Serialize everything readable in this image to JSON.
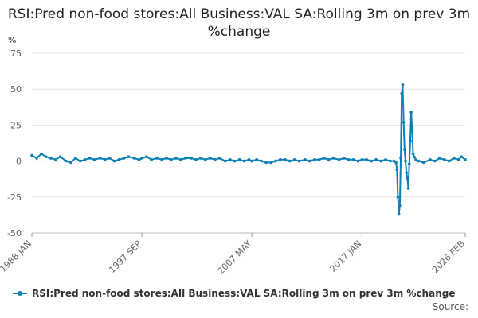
{
  "chart_data": {
    "type": "line",
    "title": "RSI:Pred non-food stores:All Business:VAL SA:Rolling 3m on prev 3m %change",
    "ylabel": "%",
    "xlabel": "",
    "ylim": [
      -50,
      75
    ],
    "yticks": [
      75,
      50,
      25,
      0,
      -25,
      -50
    ],
    "xlim": [
      "1988-01",
      "2026-02"
    ],
    "xticks": [
      "1988 JAN",
      "1997 SEP",
      "2007 MAY",
      "2017 JAN",
      "2026 FEB"
    ],
    "grid": true,
    "legend_position": "bottom",
    "series": [
      {
        "name": "RSI:Pred non-food stores:All Business:VAL SA:Rolling 3m on prev 3m %change",
        "color": "#0a7fb5",
        "points": [
          [
            "1988-01",
            4
          ],
          [
            "1988-06",
            2
          ],
          [
            "1988-11",
            5
          ],
          [
            "1989-04",
            3
          ],
          [
            "1989-09",
            2
          ],
          [
            "1990-02",
            1
          ],
          [
            "1990-07",
            3
          ],
          [
            "1991-01",
            0
          ],
          [
            "1991-06",
            -1
          ],
          [
            "1991-11",
            2
          ],
          [
            "1992-04",
            0
          ],
          [
            "1992-09",
            1
          ],
          [
            "1993-02",
            2
          ],
          [
            "1993-07",
            1
          ],
          [
            "1994-01",
            2
          ],
          [
            "1994-06",
            1
          ],
          [
            "1994-11",
            2
          ],
          [
            "1995-04",
            0
          ],
          [
            "1995-09",
            1
          ],
          [
            "1996-02",
            2
          ],
          [
            "1996-07",
            3
          ],
          [
            "1997-01",
            2
          ],
          [
            "1997-06",
            1
          ],
          [
            "1997-09",
            2
          ],
          [
            "1998-02",
            3
          ],
          [
            "1998-07",
            1
          ],
          [
            "1999-01",
            2
          ],
          [
            "1999-06",
            1
          ],
          [
            "1999-11",
            2
          ],
          [
            "2000-04",
            1
          ],
          [
            "2000-09",
            2
          ],
          [
            "2001-02",
            1
          ],
          [
            "2001-07",
            2
          ],
          [
            "2002-01",
            2
          ],
          [
            "2002-06",
            1
          ],
          [
            "2002-11",
            2
          ],
          [
            "2003-04",
            1
          ],
          [
            "2003-09",
            2
          ],
          [
            "2004-02",
            1
          ],
          [
            "2004-07",
            2
          ],
          [
            "2005-01",
            0
          ],
          [
            "2005-06",
            1
          ],
          [
            "2005-11",
            0
          ],
          [
            "2006-04",
            1
          ],
          [
            "2006-09",
            0
          ],
          [
            "2007-02",
            1
          ],
          [
            "2007-05",
            0
          ],
          [
            "2007-10",
            1
          ],
          [
            "2008-03",
            0
          ],
          [
            "2008-08",
            -1
          ],
          [
            "2009-01",
            -1
          ],
          [
            "2009-06",
            0
          ],
          [
            "2009-11",
            1
          ],
          [
            "2010-04",
            1
          ],
          [
            "2010-09",
            0
          ],
          [
            "2011-02",
            1
          ],
          [
            "2011-07",
            0
          ],
          [
            "2012-01",
            1
          ],
          [
            "2012-06",
            0
          ],
          [
            "2012-11",
            1
          ],
          [
            "2013-04",
            1
          ],
          [
            "2013-09",
            2
          ],
          [
            "2014-02",
            1
          ],
          [
            "2014-07",
            2
          ],
          [
            "2015-01",
            1
          ],
          [
            "2015-06",
            2
          ],
          [
            "2015-11",
            1
          ],
          [
            "2016-04",
            1
          ],
          [
            "2016-09",
            0
          ],
          [
            "2017-01",
            1
          ],
          [
            "2017-06",
            1
          ],
          [
            "2017-11",
            0
          ],
          [
            "2018-04",
            1
          ],
          [
            "2018-09",
            0
          ],
          [
            "2019-02",
            1
          ],
          [
            "2019-07",
            0
          ],
          [
            "2019-11",
            0
          ],
          [
            "2020-01",
            -1
          ],
          [
            "2020-02",
            -6
          ],
          [
            "2020-03",
            -25
          ],
          [
            "2020-04",
            -37
          ],
          [
            "2020-05",
            -31
          ],
          [
            "2020-06",
            2
          ],
          [
            "2020-07",
            47
          ],
          [
            "2020-08",
            53
          ],
          [
            "2020-09",
            27
          ],
          [
            "2020-10",
            8
          ],
          [
            "2020-11",
            0
          ],
          [
            "2020-12",
            -8
          ],
          [
            "2021-01",
            -12
          ],
          [
            "2021-02",
            -19
          ],
          [
            "2021-03",
            -2
          ],
          [
            "2021-04",
            14
          ],
          [
            "2021-05",
            34
          ],
          [
            "2021-06",
            21
          ],
          [
            "2021-07",
            5
          ],
          [
            "2021-08",
            3
          ],
          [
            "2021-10",
            1
          ],
          [
            "2022-01",
            0
          ],
          [
            "2022-06",
            -1
          ],
          [
            "2023-01",
            1
          ],
          [
            "2023-06",
            0
          ],
          [
            "2023-11",
            2
          ],
          [
            "2024-04",
            1
          ],
          [
            "2024-09",
            0
          ],
          [
            "2025-02",
            2
          ],
          [
            "2025-07",
            1
          ],
          [
            "2025-10",
            3
          ],
          [
            "2026-02",
            1
          ]
        ]
      }
    ]
  },
  "legend": {
    "label": "RSI:Pred non-food stores:All Business:VAL SA:Rolling 3m on prev 3m %change"
  },
  "source_label": "Source:"
}
